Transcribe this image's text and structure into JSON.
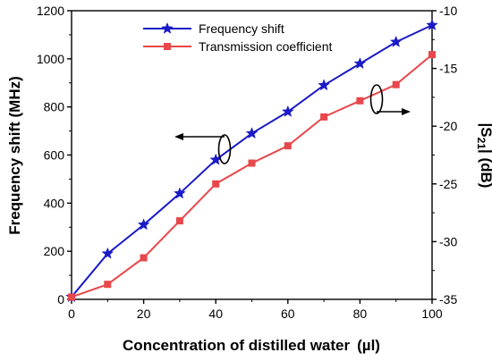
{
  "chart_data": {
    "type": "line",
    "xlabel_main": "Concentration of distilled water",
    "xlabel_unit": "(µl)",
    "ylabel_left": "Frequency shift (MHz)",
    "ylabel_right_prefix": "|S",
    "ylabel_right_sub": "21",
    "ylabel_right_suffix": "| (dB)",
    "x": [
      0,
      10,
      20,
      30,
      40,
      50,
      60,
      70,
      80,
      90,
      100
    ],
    "xlim": [
      0,
      100
    ],
    "ylim_left": [
      0,
      1200
    ],
    "ylim_right": [
      -35,
      -10
    ],
    "x_ticks": [
      0,
      20,
      40,
      60,
      80,
      100
    ],
    "y_ticks_left": [
      0,
      200,
      400,
      600,
      800,
      1000,
      1200
    ],
    "y_ticks_right": [
      -35,
      -30,
      -25,
      -20,
      -15,
      -10
    ],
    "legend_position": "top-center",
    "series": [
      {
        "name": "Frequency shift",
        "axis": "left",
        "color": "#1a1ac8",
        "marker": "star",
        "values": [
          10,
          190,
          310,
          440,
          580,
          690,
          780,
          890,
          980,
          1070,
          1140
        ]
      },
      {
        "name": "Transmission coefficient",
        "axis": "right",
        "color": "#e8474b",
        "marker": "square",
        "values": [
          -34.8,
          -33.7,
          -31.4,
          -28.2,
          -25.0,
          -23.2,
          -21.7,
          -19.2,
          -17.8,
          -16.4,
          -13.8
        ]
      }
    ]
  }
}
